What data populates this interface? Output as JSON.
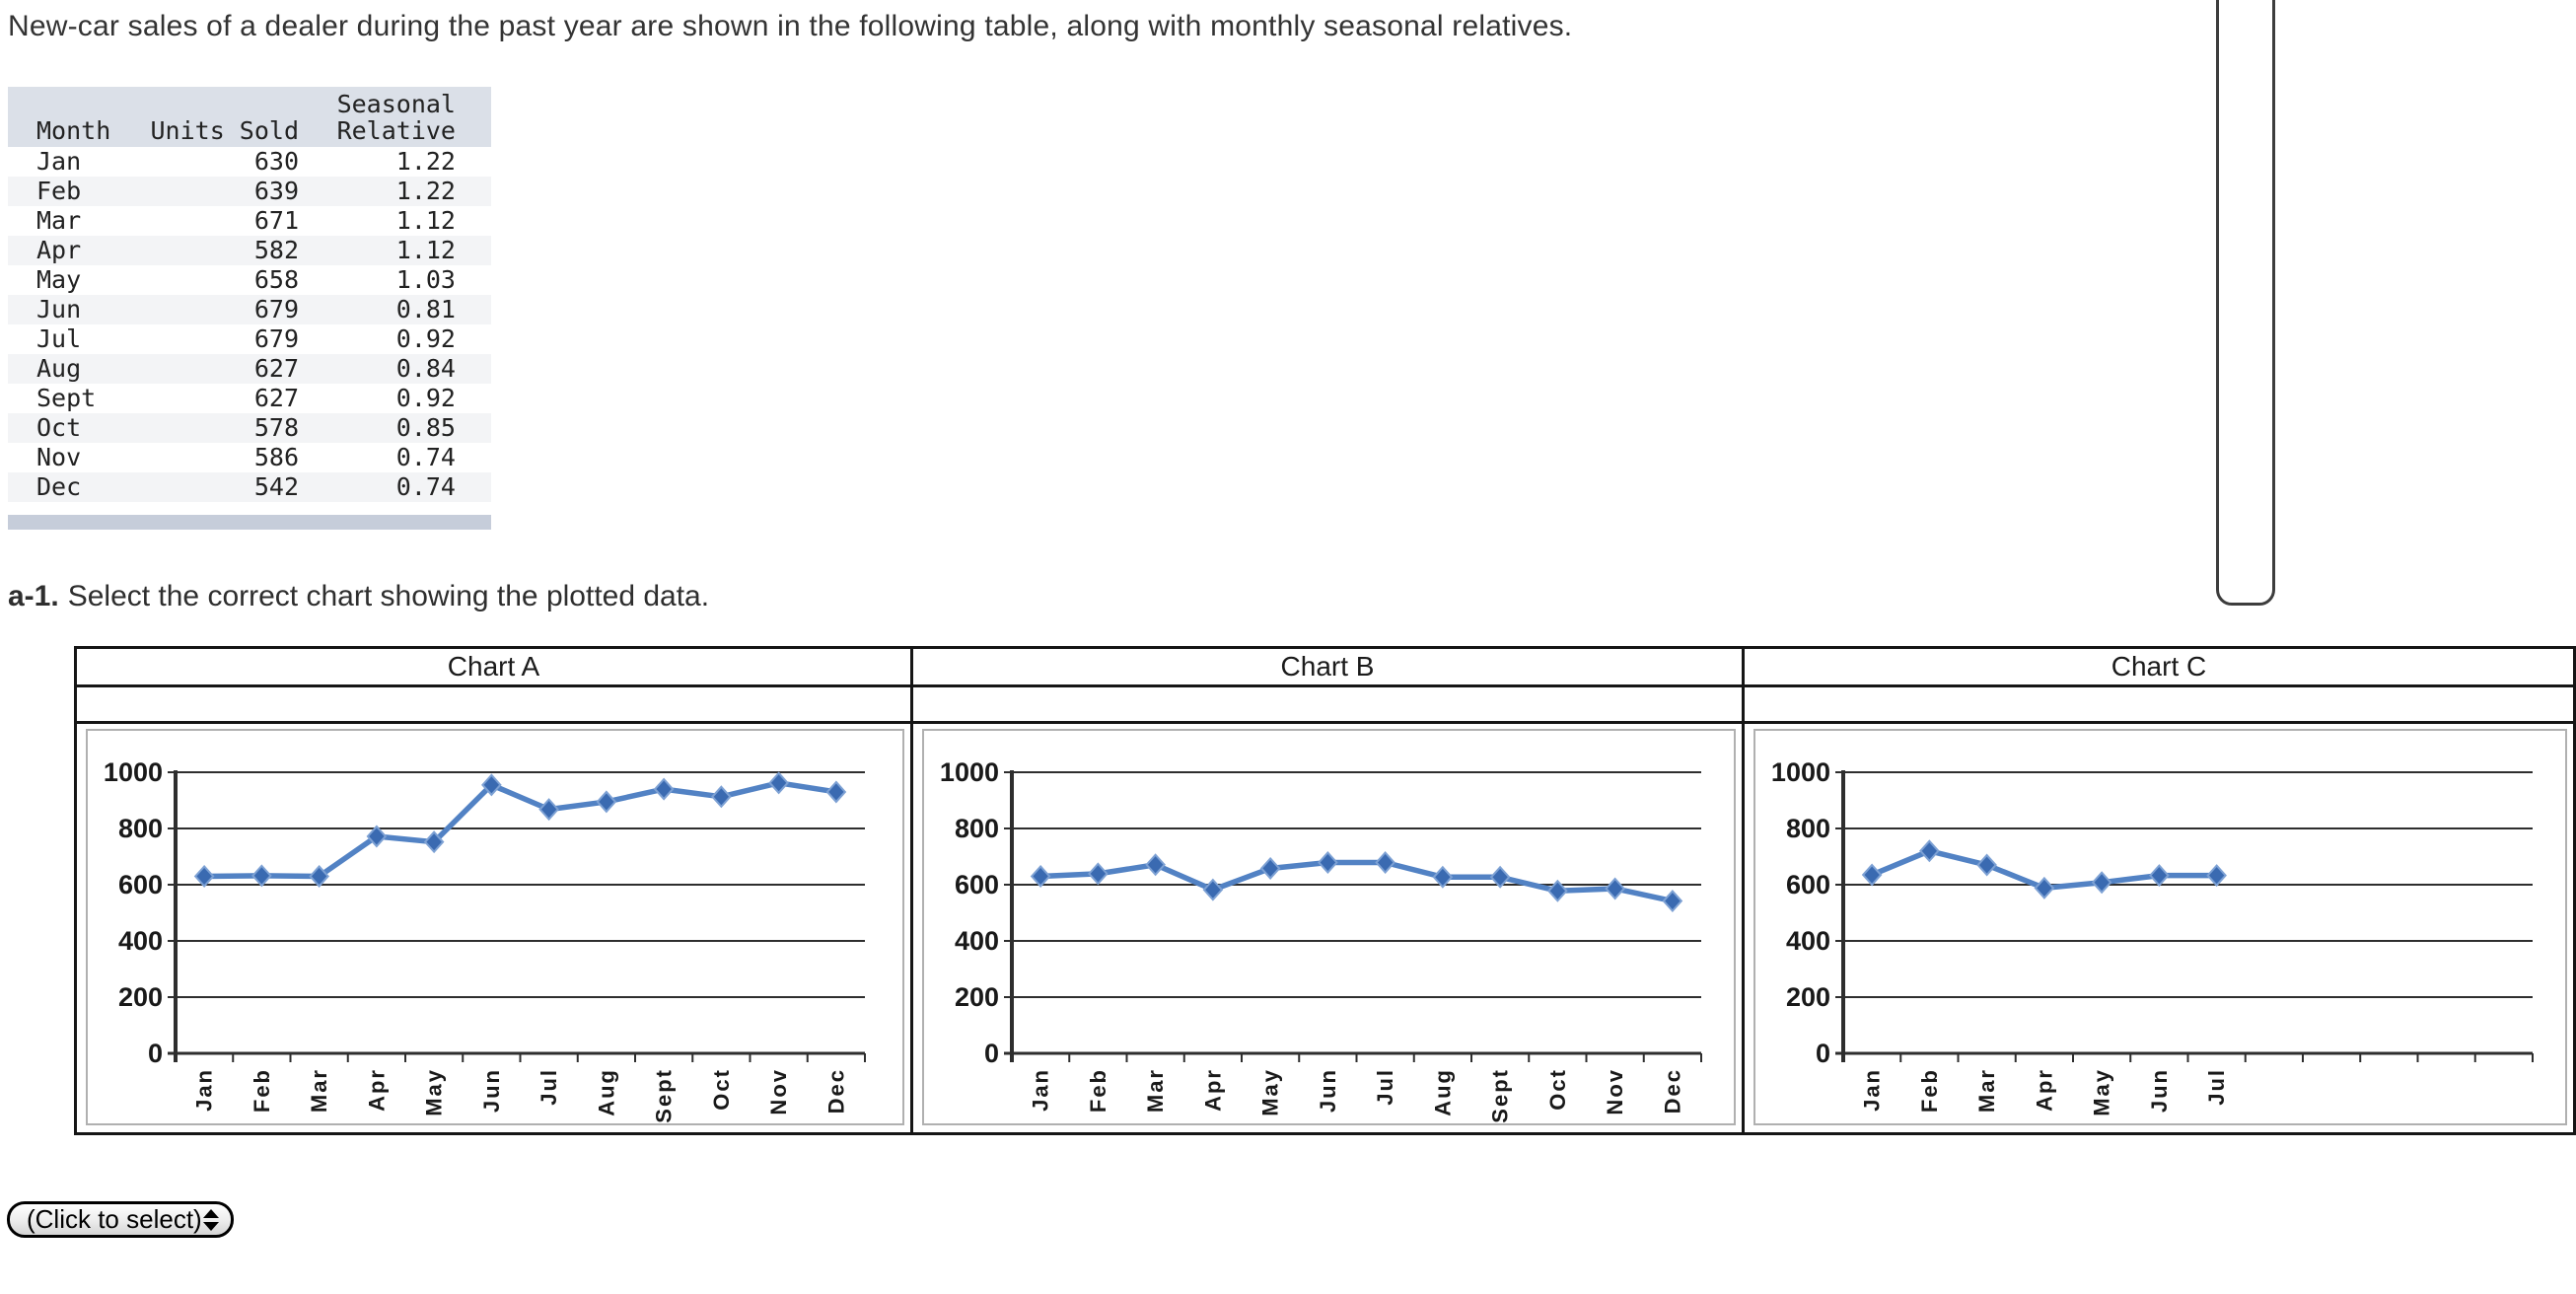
{
  "page": {
    "intro": "New-car sales of a dealer during the past year are shown in the following table, along with monthly seasonal relatives.",
    "question": {
      "prefix": "a-1.",
      "text": "Select the correct chart showing the plotted data."
    }
  },
  "table": {
    "header": {
      "month": "Month",
      "units": "Units Sold",
      "seasonal_line1": "Seasonal",
      "seasonal_line2": "Relative"
    },
    "rows": [
      [
        "Jan",
        "630",
        "1.22"
      ],
      [
        "Feb",
        "639",
        "1.22"
      ],
      [
        "Mar",
        "671",
        "1.12"
      ],
      [
        "Apr",
        "582",
        "1.12"
      ],
      [
        "May",
        "658",
        "1.03"
      ],
      [
        "Jun",
        "679",
        "0.81"
      ],
      [
        "Jul",
        "679",
        "0.92"
      ],
      [
        "Aug",
        "627",
        "0.84"
      ],
      [
        "Sept",
        "627",
        "0.92"
      ],
      [
        "Oct",
        "578",
        "0.85"
      ],
      [
        "Nov",
        "586",
        "0.74"
      ],
      [
        "Dec",
        "542",
        "0.74"
      ]
    ]
  },
  "selector": {
    "label": "(Click to select)",
    "icon": "up-down-arrows"
  },
  "colors": {
    "series_line": "#5282c4",
    "marker_fill": "#3a6ab1",
    "marker_edge": "#7da1d4",
    "grid_line": "#2e2e2e",
    "table_header_bg": "#dbe0e8",
    "row_stripe": "#f3f4f6",
    "table_footer_bar": "#c6cdda"
  },
  "chart_data": [
    {
      "name": "Chart A",
      "type": "line",
      "marker": "diamond",
      "categories": [
        "Jan",
        "Feb",
        "Mar",
        "Apr",
        "May",
        "Jun",
        "Jul",
        "Aug",
        "Sept",
        "Oct",
        "Nov",
        "Dec"
      ],
      "values": [
        630,
        632,
        630,
        772,
        752,
        955,
        868,
        895,
        940,
        913,
        962,
        930
      ],
      "ylim": [
        0,
        1000
      ],
      "yticks": [
        1000,
        800,
        600,
        400,
        200,
        0
      ],
      "grid": true,
      "legend": false
    },
    {
      "name": "Chart B",
      "type": "line",
      "marker": "diamond",
      "categories": [
        "Jan",
        "Feb",
        "Mar",
        "Apr",
        "May",
        "Jun",
        "Jul",
        "Aug",
        "Sept",
        "Oct",
        "Nov",
        "Dec"
      ],
      "values": [
        630,
        639,
        671,
        582,
        658,
        679,
        679,
        627,
        627,
        578,
        586,
        542
      ],
      "ylim": [
        0,
        1000
      ],
      "yticks": [
        1000,
        800,
        600,
        400,
        200,
        0
      ],
      "grid": true,
      "legend": false
    },
    {
      "name": "Chart C",
      "type": "line",
      "marker": "diamond",
      "categories": [
        "Jan",
        "Feb",
        "Mar",
        "Apr",
        "May",
        "Jun",
        "Jul"
      ],
      "values": [
        635,
        720,
        670,
        588,
        608,
        633,
        633
      ],
      "ylim": [
        0,
        1000
      ],
      "yticks": [
        1000,
        800,
        600,
        400,
        200,
        0
      ],
      "grid": true,
      "legend": false,
      "clipped_at_right_edge": true
    }
  ]
}
